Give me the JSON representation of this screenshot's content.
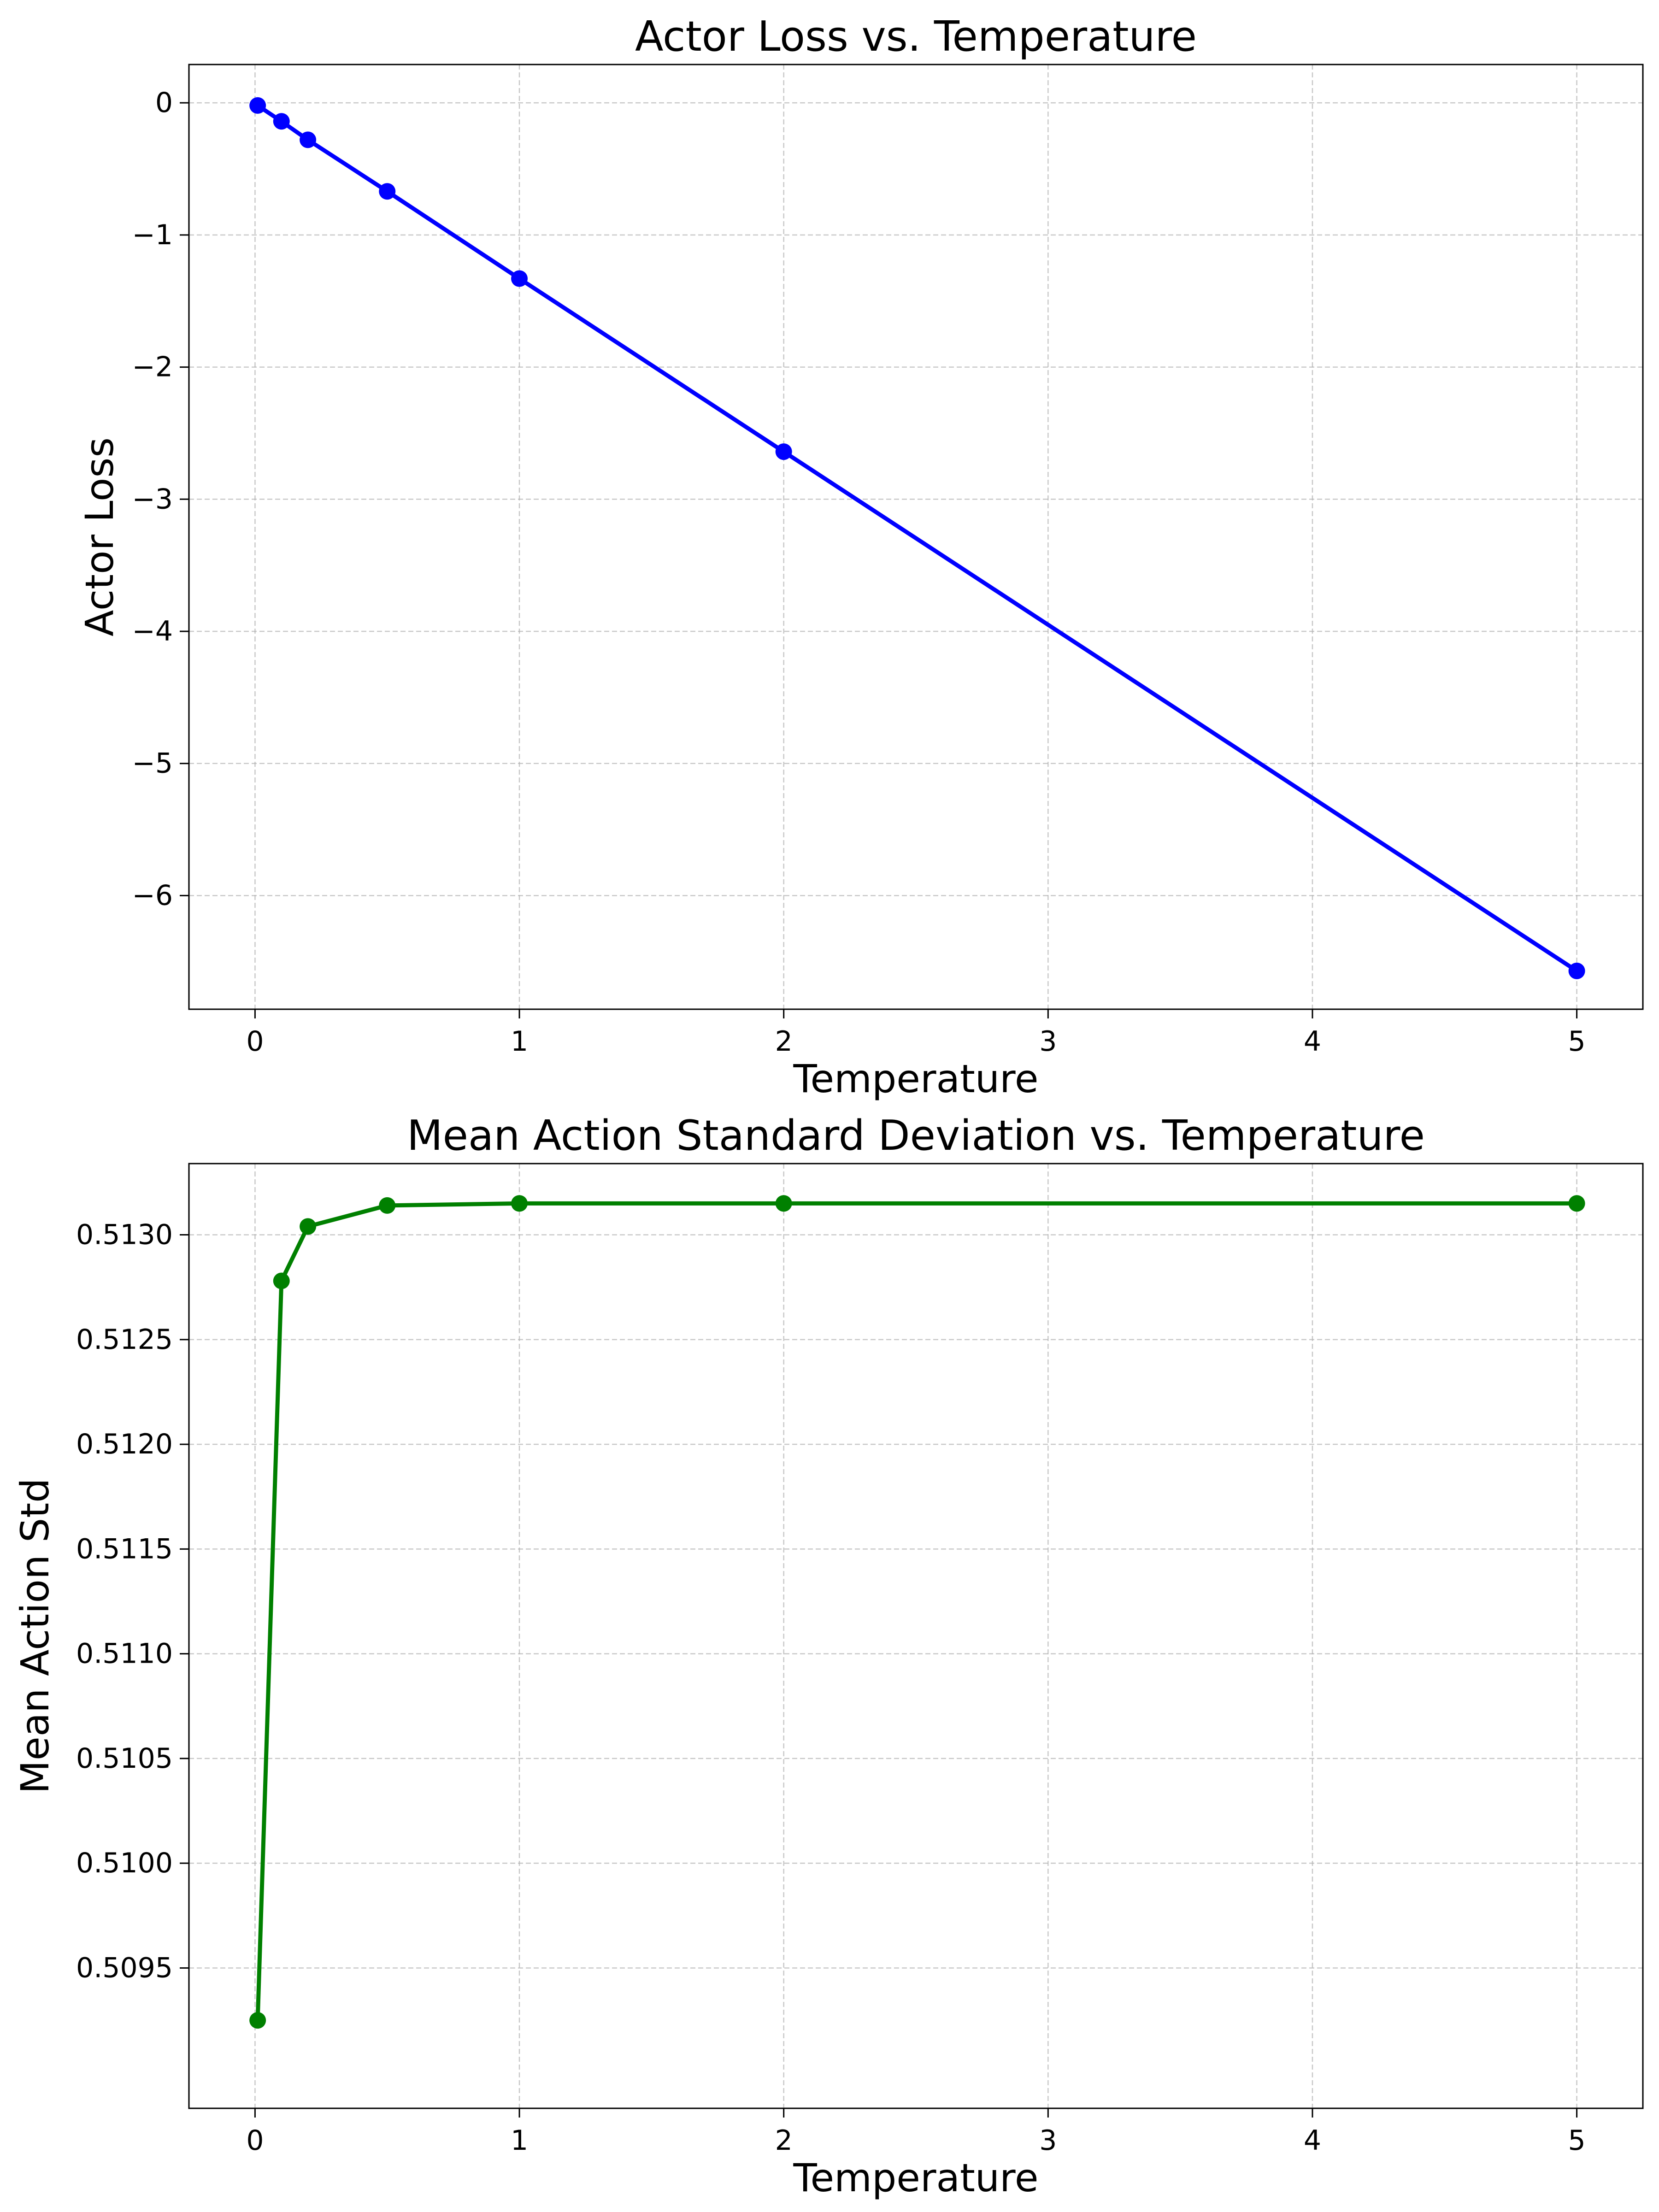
{
  "chart_data": [
    {
      "type": "line",
      "title": "Actor Loss vs. Temperature",
      "xlabel": "Temperature",
      "ylabel": "Actor Loss",
      "xlim": [
        -0.25,
        5.25
      ],
      "ylim": [
        -6.86,
        0.29
      ],
      "xticks": [
        0,
        1,
        2,
        3,
        4,
        5
      ],
      "xtick_labels": [
        "0",
        "1",
        "2",
        "3",
        "4",
        "5"
      ],
      "yticks": [
        0,
        -1,
        -2,
        -3,
        -4,
        -5,
        -6
      ],
      "ytick_labels": [
        "0",
        "−1",
        "−2",
        "−3",
        "−4",
        "−5",
        "−6"
      ],
      "grid": true,
      "color": "#0000ff",
      "x": [
        0.01,
        0.1,
        0.2,
        0.5,
        1,
        2,
        5
      ],
      "y": [
        -0.02,
        -0.14,
        -0.28,
        -0.67,
        -1.33,
        -2.64,
        -6.57
      ]
    },
    {
      "type": "line",
      "title": "Mean Action Standard Deviation vs. Temperature",
      "xlabel": "Temperature",
      "ylabel": "Mean Action Std",
      "xlim": [
        -0.25,
        5.25
      ],
      "ylim": [
        0.50883,
        0.51334
      ],
      "xticks": [
        0,
        1,
        2,
        3,
        4,
        5
      ],
      "xtick_labels": [
        "0",
        "1",
        "2",
        "3",
        "4",
        "5"
      ],
      "yticks": [
        0.5095,
        0.51,
        0.5105,
        0.511,
        0.5115,
        0.512,
        0.5125,
        0.513
      ],
      "ytick_labels": [
        "0.5095",
        "0.5100",
        "0.5105",
        "0.5110",
        "0.5115",
        "0.5120",
        "0.5125",
        "0.5130"
      ],
      "grid": true,
      "color": "#008000",
      "x": [
        0.01,
        0.1,
        0.2,
        0.5,
        1,
        2,
        5
      ],
      "y": [
        0.50925,
        0.51278,
        0.51304,
        0.51314,
        0.51315,
        0.51315,
        0.51315
      ]
    }
  ]
}
